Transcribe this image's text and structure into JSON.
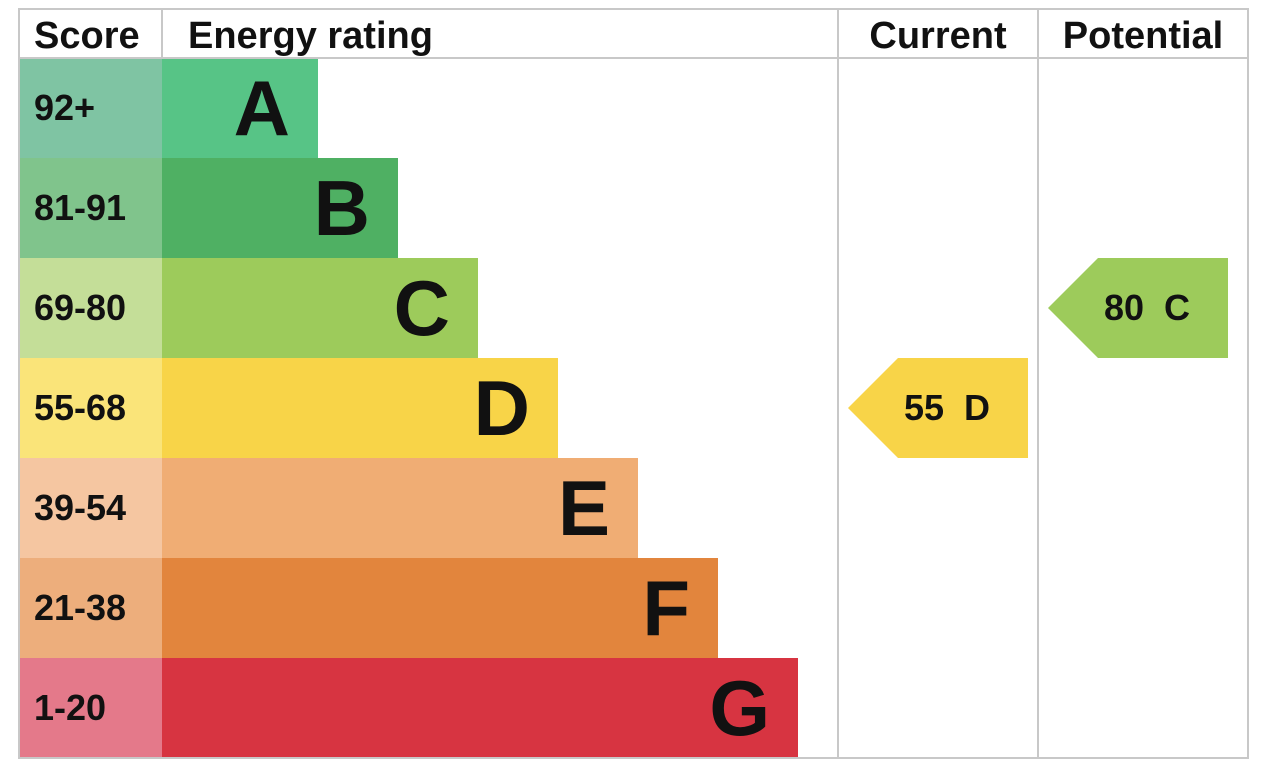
{
  "chart_data": {
    "type": "bar",
    "headers": {
      "score": "Score",
      "rating": "Energy rating",
      "current": "Current",
      "potential": "Potential"
    },
    "bands": [
      {
        "letter": "A",
        "range": "92+",
        "color": "#57c486",
        "score_color": "#7fc4a3"
      },
      {
        "letter": "B",
        "range": "81-91",
        "color": "#4fb063",
        "score_color": "#80c48c"
      },
      {
        "letter": "C",
        "range": "69-80",
        "color": "#9dcb5b",
        "score_color": "#c4de98"
      },
      {
        "letter": "D",
        "range": "55-68",
        "color": "#f8d448",
        "score_color": "#fae479"
      },
      {
        "letter": "E",
        "range": "39-54",
        "color": "#f0ad74",
        "score_color": "#f5c6a1"
      },
      {
        "letter": "F",
        "range": "21-38",
        "color": "#e2853d",
        "score_color": "#edae7c"
      },
      {
        "letter": "G",
        "range": "1-20",
        "color": "#d73441",
        "score_color": "#e4798a"
      }
    ],
    "current": {
      "value": 55,
      "band": "D",
      "color": "#f8d448"
    },
    "potential": {
      "value": 80,
      "band": "C",
      "color": "#9dcb5b"
    }
  }
}
